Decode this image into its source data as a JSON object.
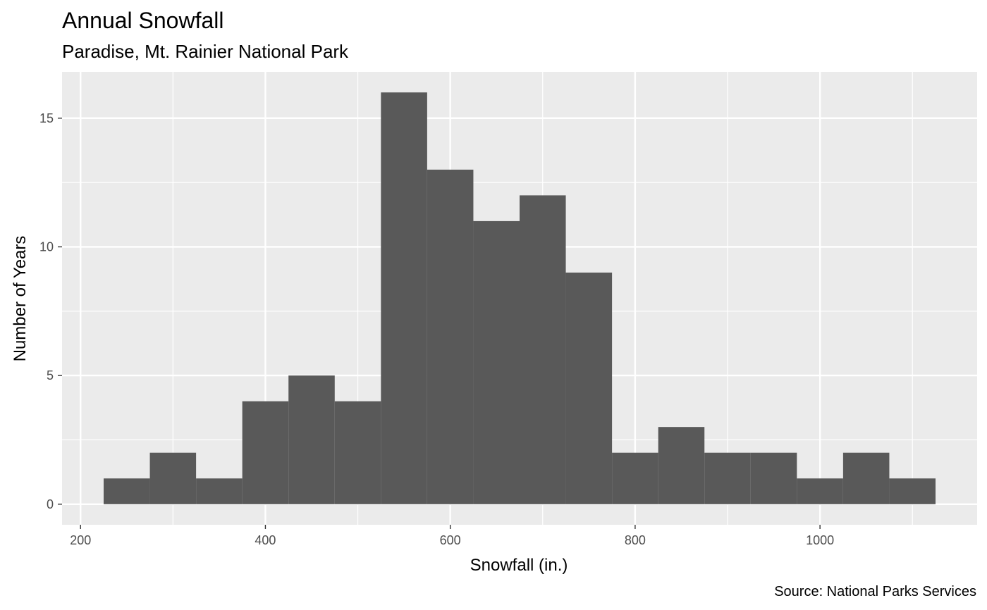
{
  "chart_data": {
    "type": "bar",
    "title": "Annual Snowfall",
    "subtitle": "Paradise, Mt. Rainier National Park",
    "xlabel": "Snowfall (in.)",
    "ylabel": "Number of Years",
    "caption": "Source: National Parks Services",
    "xlim": [
      180,
      1170
    ],
    "ylim": [
      -0.8,
      16.8
    ],
    "x_ticks": [
      200,
      400,
      600,
      800,
      1000
    ],
    "y_ticks": [
      0,
      5,
      10,
      15
    ],
    "x_tick_labels": [
      "200",
      "400",
      "600",
      "800",
      "1000"
    ],
    "y_tick_labels": [
      "0",
      "5",
      "10",
      "15"
    ],
    "grid": true,
    "bar_color": "#595959",
    "panel_color": "#ebebeb",
    "bins": [
      {
        "x0": 225,
        "x1": 275,
        "count": 1
      },
      {
        "x0": 275,
        "x1": 325,
        "count": 2
      },
      {
        "x0": 325,
        "x1": 375,
        "count": 1
      },
      {
        "x0": 375,
        "x1": 425,
        "count": 4
      },
      {
        "x0": 425,
        "x1": 475,
        "count": 5
      },
      {
        "x0": 475,
        "x1": 525,
        "count": 4
      },
      {
        "x0": 525,
        "x1": 575,
        "count": 16
      },
      {
        "x0": 575,
        "x1": 625,
        "count": 13
      },
      {
        "x0": 625,
        "x1": 675,
        "count": 11
      },
      {
        "x0": 675,
        "x1": 725,
        "count": 12
      },
      {
        "x0": 725,
        "x1": 775,
        "count": 9
      },
      {
        "x0": 775,
        "x1": 825,
        "count": 2
      },
      {
        "x0": 825,
        "x1": 875,
        "count": 3
      },
      {
        "x0": 875,
        "x1": 925,
        "count": 2
      },
      {
        "x0": 925,
        "x1": 975,
        "count": 2
      },
      {
        "x0": 975,
        "x1": 1025,
        "count": 1
      },
      {
        "x0": 1025,
        "x1": 1075,
        "count": 2
      },
      {
        "x0": 1075,
        "x1": 1125,
        "count": 1
      }
    ]
  }
}
